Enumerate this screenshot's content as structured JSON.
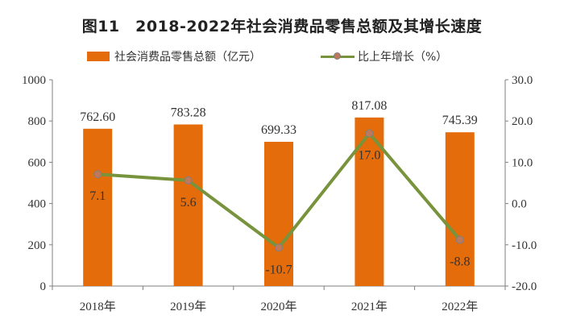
{
  "title": "图11　2018-2022年社会消费品零售总额及其增长速度",
  "legend": {
    "bar_label": "社会消费品零售总额（亿元）",
    "line_label": "比上年增长（%）"
  },
  "colors": {
    "bar": "#E46C0A",
    "line": "#77933C",
    "marker": "#C0785A"
  },
  "chart_data": {
    "type": "bar",
    "categories": [
      "2018年",
      "2019年",
      "2020年",
      "2021年",
      "2022年"
    ],
    "series": [
      {
        "name": "社会消费品零售总额（亿元）",
        "type": "bar",
        "axis": "left",
        "values": [
          762.6,
          783.28,
          699.33,
          817.08,
          745.39
        ],
        "labels": [
          "762.60",
          "783.28",
          "699.33",
          "817.08",
          "745.39"
        ]
      },
      {
        "name": "比上年增长（%）",
        "type": "line",
        "axis": "right",
        "values": [
          7.1,
          5.6,
          -10.7,
          17.0,
          -8.8
        ],
        "labels": [
          "7.1",
          "5.6",
          "-10.7",
          "17.0",
          "-8.8"
        ]
      }
    ],
    "y_left": {
      "min": 0,
      "max": 1000,
      "ticks": [
        "0",
        "200",
        "400",
        "600",
        "800",
        "1000"
      ]
    },
    "y_right": {
      "min": -20,
      "max": 30,
      "ticks": [
        "-20.0",
        "-10.0",
        "0.0",
        "10.0",
        "20.0",
        "30.0"
      ]
    },
    "grid": false,
    "legend_position": "top"
  }
}
